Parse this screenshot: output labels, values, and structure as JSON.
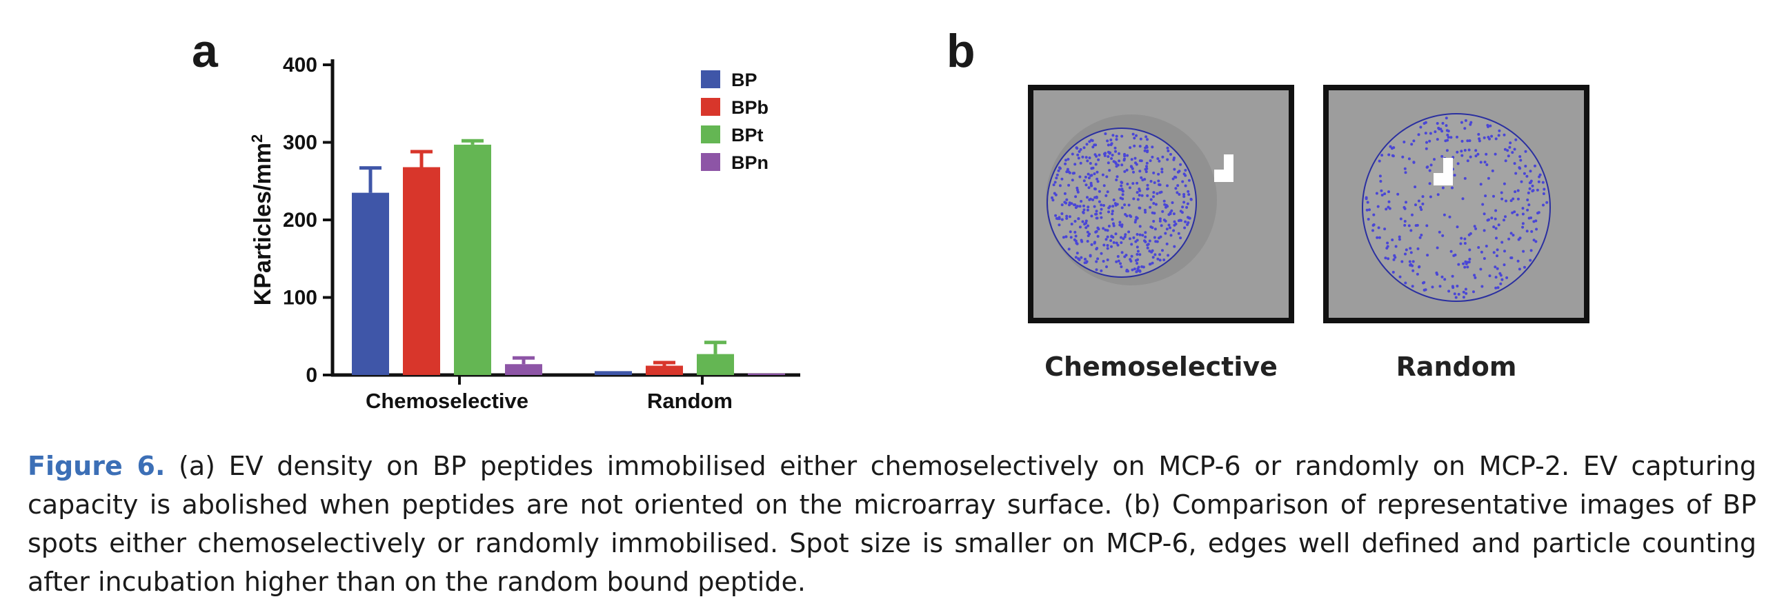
{
  "panel_a": {
    "letter": "a",
    "chart_data": {
      "type": "bar",
      "categories": [
        "Chemoselective",
        "Random"
      ],
      "ylabel": "KParticles/mm",
      "ylabel_sup": "2",
      "ylim": [
        0,
        400
      ],
      "yticks": [
        "0",
        "100",
        "200",
        "300",
        "400"
      ],
      "legend_placement": "top-right",
      "series": [
        {
          "name": "BP",
          "color": "#3f56a8",
          "values": [
            235,
            5
          ],
          "errors": [
            32,
            0
          ]
        },
        {
          "name": "BPb",
          "color": "#d8362b",
          "values": [
            268,
            12
          ],
          "errors": [
            20,
            4
          ]
        },
        {
          "name": "BPt",
          "color": "#64b653",
          "values": [
            297,
            27
          ],
          "errors": [
            5,
            15
          ]
        },
        {
          "name": "BPn",
          "color": "#8d55a6",
          "values": [
            14,
            2
          ],
          "errors": [
            8,
            0
          ]
        }
      ]
    }
  },
  "panel_b": {
    "letter": "b",
    "images": [
      {
        "label": "Chemoselective"
      },
      {
        "label": "Random"
      }
    ],
    "dot_color": "#4a46d6",
    "ring_color": "#2a2fa0"
  },
  "caption": {
    "label": "Figure 6.",
    "text": " (a) EV density on BP peptides immobilised either chemoselectively on MCP-6 or randomly on MCP-2. EV capturing capacity is abolished when peptides are not oriented on the microarray surface. (b) Comparison of representative images of BP spots either chemoselectively or randomly immobilised. Spot size is smaller on MCP-6, edges well defined and particle counting after incubation higher than on the random bound peptide."
  }
}
